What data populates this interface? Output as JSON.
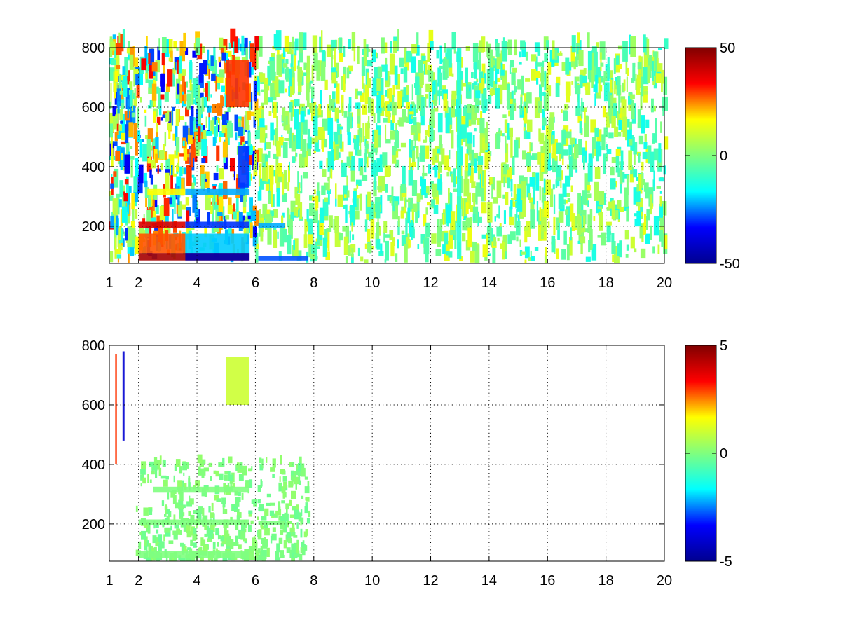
{
  "colormap": [
    "#00008f",
    "#0000ff",
    "#00ffff",
    "#7fff7f",
    "#ffff00",
    "#ff0000",
    "#800000"
  ],
  "chart_data": [
    {
      "type": "heatmap",
      "title": "",
      "xlabel": "",
      "ylabel": "",
      "xlim": [
        1,
        20
      ],
      "ylim": [
        75,
        800
      ],
      "x_ticks": [
        1,
        2,
        4,
        6,
        8,
        10,
        12,
        14,
        16,
        18,
        20
      ],
      "x_tick_labels": [
        "1",
        "2",
        "4",
        "6",
        "8",
        "10",
        "12",
        "14",
        "16",
        "18",
        "20"
      ],
      "y_ticks": [
        200,
        400,
        600,
        800
      ],
      "y_tick_labels": [
        "200",
        "400",
        "600",
        "800"
      ],
      "grid": true,
      "colorbar": {
        "clim": [
          -50,
          50
        ],
        "tick_values": [
          50,
          0,
          -50
        ],
        "tick_labels": [
          "50",
          "0",
          "-50"
        ]
      },
      "features": [
        {
          "x": [
            2.0,
            5.8
          ],
          "y": [
            85,
            110
          ],
          "value": 45
        },
        {
          "x": [
            3.6,
            5.8
          ],
          "y": [
            85,
            110
          ],
          "value": -45
        },
        {
          "x": [
            2.0,
            3.6
          ],
          "y": [
            110,
            175
          ],
          "value": 28
        },
        {
          "x": [
            3.6,
            5.8
          ],
          "y": [
            110,
            175
          ],
          "value": -20
        },
        {
          "x": [
            2.0,
            3.6
          ],
          "y": [
            195,
            215
          ],
          "value": 38
        },
        {
          "x": [
            3.6,
            5.8
          ],
          "y": [
            195,
            215
          ],
          "value": -30
        },
        {
          "x": [
            2.3,
            3.6
          ],
          "y": [
            305,
            325
          ],
          "value": 16
        },
        {
          "x": [
            3.6,
            5.8
          ],
          "y": [
            305,
            325
          ],
          "value": -22
        },
        {
          "x": [
            6.1,
            7.0
          ],
          "y": [
            195,
            210
          ],
          "value": -22
        },
        {
          "x": [
            6.1,
            7.8
          ],
          "y": [
            85,
            100
          ],
          "value": -28
        },
        {
          "x": [
            5.0,
            5.8
          ],
          "y": [
            600,
            760
          ],
          "value": 30
        },
        {
          "x": [
            5.4,
            5.8
          ],
          "y": [
            330,
            470
          ],
          "value": -30
        },
        {
          "x": [
            12.9,
            13.05
          ],
          "y": [
            90,
            800
          ],
          "value": -12
        }
      ]
    },
    {
      "type": "heatmap",
      "title": "",
      "xlabel": "",
      "ylabel": "",
      "xlim": [
        1,
        20
      ],
      "ylim": [
        75,
        800
      ],
      "x_ticks": [
        1,
        2,
        4,
        6,
        8,
        10,
        12,
        14,
        16,
        18,
        20
      ],
      "x_tick_labels": [
        "1",
        "2",
        "4",
        "6",
        "8",
        "10",
        "12",
        "14",
        "16",
        "18",
        "20"
      ],
      "y_ticks": [
        200,
        400,
        600,
        800
      ],
      "y_tick_labels": [
        "200",
        "400",
        "600",
        "800"
      ],
      "grid": true,
      "colorbar": {
        "clim": [
          -5,
          5
        ],
        "tick_values": [
          5,
          0,
          -5
        ],
        "tick_labels": [
          "5",
          "0",
          "-5"
        ]
      },
      "features": [
        {
          "x": [
            2.0,
            5.8
          ],
          "y": [
            85,
            110
          ],
          "value": 0
        },
        {
          "x": [
            2.0,
            5.8
          ],
          "y": [
            195,
            215
          ],
          "value": 0
        },
        {
          "x": [
            2.5,
            5.8
          ],
          "y": [
            305,
            325
          ],
          "value": 0
        },
        {
          "x": [
            6.1,
            7.0
          ],
          "y": [
            195,
            210
          ],
          "value": 0
        },
        {
          "x": [
            5.0,
            5.8
          ],
          "y": [
            600,
            760
          ],
          "value": 1
        },
        {
          "x": [
            1.45,
            1.52
          ],
          "y": [
            480,
            780
          ],
          "value": -4
        },
        {
          "x": [
            1.2,
            1.26
          ],
          "y": [
            400,
            770
          ],
          "value": 3
        }
      ]
    }
  ]
}
